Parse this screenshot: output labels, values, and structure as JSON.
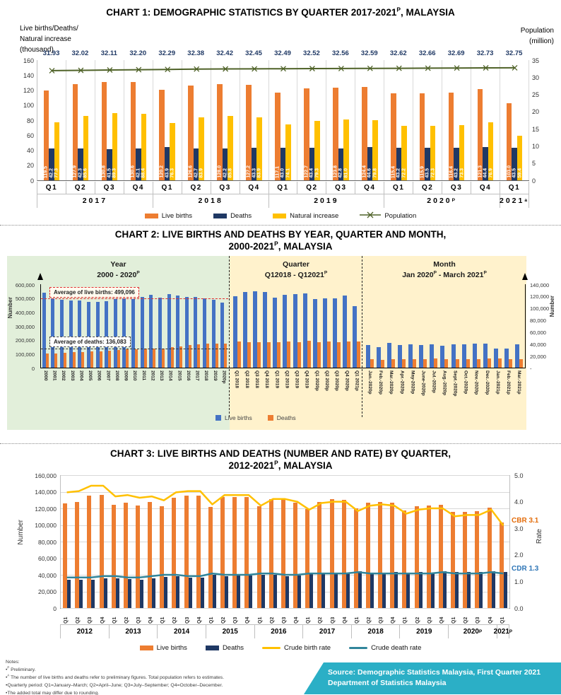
{
  "chart1": {
    "title": [
      {
        "t": "CHART 1: DEMOGRAPHIC STATISTICS BY QUARTER 2017-2021"
      },
      {
        "s": "P"
      },
      {
        "t": ",  MALAYSIA"
      }
    ],
    "left_caption": [
      "Live births/Deaths/",
      "Natural increase",
      "(thousand)"
    ],
    "right_caption": [
      "Population",
      "(million)"
    ]
  },
  "chart2": {
    "title_line1": [
      {
        "t": "CHART 2: LIVE BIRTHS AND DEATHS BY YEAR, QUARTER AND MONTH,"
      }
    ],
    "title_line2": [
      {
        "t": "2000-2021"
      },
      {
        "s": "P"
      },
      {
        "t": ",  MALAYSIA"
      }
    ]
  },
  "chart3": {
    "title_line1": [
      {
        "t": "CHART 3: LIVE BIRTHS AND DEATHS (NUMBER AND RATE) BY QUARTER,"
      }
    ],
    "title_line2": [
      {
        "t": "2012-2021"
      },
      {
        "s": "P"
      },
      {
        "t": ",  MALAYSIA"
      }
    ]
  },
  "notes": {
    "heading": "Notes:",
    "lines": [
      [
        {
          "t": "•"
        },
        {
          "s": "P"
        },
        {
          "t": " Preliminary."
        }
      ],
      [
        {
          "t": "•"
        },
        {
          "s": "A"
        },
        {
          "t": " The number of live births and deaths refer to preliminary figures. Total population refers to estimates."
        }
      ],
      [
        {
          "t": "•Quarterly period: Q1=January–March;  Q2=April–June; Q3=July–September; Q4=October–December."
        }
      ],
      [
        {
          "t": "•The added total may differ due to rounding."
        }
      ]
    ]
  },
  "source": {
    "line1": "Source: Demographic  Statistics Malaysia,  First Quarter 2021",
    "line2": "Department  of Statistics Malaysia",
    "bg": "#2BAFC6"
  },
  "chart_data": [
    {
      "id": "chart1",
      "type": "bar+line",
      "quarters": [
        "Q1",
        "Q2",
        "Q3",
        "Q4",
        "Q1",
        "Q2",
        "Q3",
        "Q4",
        "Q1",
        "Q2",
        "Q3",
        "Q4",
        "Q1",
        "Q2",
        "Q3",
        "Q4",
        "Q1"
      ],
      "year_groups": [
        {
          "label": [
            {
              "t": "2017"
            }
          ],
          "span": 4
        },
        {
          "label": [
            {
              "t": "2018"
            }
          ],
          "span": 4
        },
        {
          "label": [
            {
              "t": "2019"
            }
          ],
          "span": 4
        },
        {
          "label": [
            {
              "t": "2020"
            },
            {
              "s": "P"
            }
          ],
          "span": 4
        },
        {
          "label": [
            {
              "t": "2021"
            },
            {
              "s": "a"
            }
          ],
          "span": 1
        }
      ],
      "series": [
        {
          "name": "Live births",
          "type": "bar",
          "color": "#ED7D31",
          "values": [
            119.5,
            127.9,
            130.8,
            130.6,
            120.2,
            126.6,
            128.0,
            127.2,
            117.1,
            122.7,
            123.8,
            124.4,
            115.4,
            115.9,
            116.4,
            121.3,
            103.0
          ],
          "labels": [
            "119.5",
            "127.9",
            "130.8",
            "130.6",
            "120.2",
            "126.6",
            "128.0",
            "127.2",
            "117.1",
            "122.7",
            "123.8",
            "124.4",
            "115.4",
            "115.9",
            "116.4",
            "121.3",
            "103.0"
          ]
        },
        {
          "name": "Deaths",
          "type": "bar",
          "color": "#1F3864",
          "values": [
            42.2,
            42.3,
            41.5,
            42.1,
            43.9,
            42.7,
            42.2,
            43.3,
            43.0,
            43.4,
            42.8,
            44.6,
            43.2,
            43.5,
            43.2,
            44.4,
            43.5
          ],
          "labels": [
            "42.2",
            "42.3",
            "41.5",
            "42.1",
            "43.9",
            "42.7",
            "42.2",
            "43.3",
            "43.0",
            "43.4",
            "42.8",
            "44.6",
            "43.2",
            "43.5",
            "43.2",
            "44.4",
            "43.5"
          ]
        },
        {
          "name": "Natural increase",
          "type": "bar",
          "color": "#FFC000",
          "values": [
            77.3,
            85.6,
            89.3,
            88.4,
            76.3,
            83.9,
            85.8,
            83.9,
            74.1,
            79.3,
            81.0,
            79.8,
            72.2,
            72.3,
            73.3,
            76.9,
            59.4
          ],
          "labels": [
            "77.3",
            "85.6",
            "89.3",
            "88.4",
            "76.3",
            "83.9",
            "85.8",
            "83.9",
            "74.1",
            "79.3",
            "81.0",
            "79.8",
            "72.2",
            "72.3",
            "73.3",
            "76.9",
            "59.4"
          ]
        },
        {
          "name": "Population",
          "type": "line",
          "color": "#4F6228",
          "axis": "right",
          "values": [
            31.93,
            32.02,
            32.11,
            32.2,
            32.29,
            32.38,
            32.42,
            32.45,
            32.49,
            32.52,
            32.56,
            32.59,
            32.62,
            32.66,
            32.69,
            32.73,
            32.75
          ],
          "labels": [
            "31.93",
            "32.02",
            "32.11",
            "32.20",
            "32.29",
            "32.38",
            "32.42",
            "32.45",
            "32.49",
            "32.52",
            "32.56",
            "32.59",
            "32.62",
            "32.66",
            "32.69",
            "32.73",
            "32.75"
          ]
        }
      ],
      "left_axis": {
        "min": 0,
        "max": 160,
        "ticks": [
          "160",
          "140",
          "120",
          "100",
          "80",
          "60",
          "40",
          "20",
          "0"
        ]
      },
      "right_axis": {
        "min": 0,
        "max": 35,
        "ticks": [
          "35",
          "30",
          "25",
          "20",
          "15",
          "10",
          "5",
          "0"
        ]
      },
      "legend": [
        {
          "label": "Live births",
          "swatch": "rect",
          "color": "#ED7D31"
        },
        {
          "label": "Deaths",
          "swatch": "rect",
          "color": "#1F3864"
        },
        {
          "label": "Natural increase",
          "swatch": "rect",
          "color": "#FFC000"
        },
        {
          "label": "Population",
          "swatch": "xline",
          "color": "#4F6228"
        }
      ]
    },
    {
      "id": "chart2",
      "type": "bar",
      "sections": [
        {
          "name": "Year",
          "range": [
            {
              "t": "2000 - 2020"
            },
            {
              "s": "P"
            }
          ],
          "axis": "left",
          "categories": [
            "2000",
            "2001",
            "2002",
            "2003",
            "2004",
            "2005",
            "2006",
            "2007",
            "2008",
            "2009",
            "2010",
            "2011",
            "2012",
            "2013",
            "2014",
            "2015",
            "2016",
            "2017",
            "2018",
            "2019",
            "2020p"
          ],
          "live_births": [
            540000,
            500000,
            490000,
            481000,
            482000,
            474000,
            472000,
            480000,
            492000,
            500000,
            491000,
            511000,
            524000,
            503000,
            528000,
            521000,
            508000,
            508000,
            501000,
            487000,
            470000
          ],
          "deaths": [
            100000,
            104000,
            108000,
            112000,
            113000,
            115000,
            118000,
            120000,
            125000,
            130000,
            130000,
            135000,
            135000,
            140000,
            150000,
            155000,
            162000,
            168000,
            172000,
            173000,
            172000
          ]
        },
        {
          "name": "Quarter",
          "range": [
            {
              "t": "Q12018 - Q12021"
            },
            {
              "s": "P"
            }
          ],
          "axis": "right",
          "categories": [
            "Q1 2018",
            "Q2 2018",
            "Q3 2018",
            "Q4 2018",
            "Q1 2019",
            "Q2 2019",
            "Q3 2019",
            "Q4 2019",
            "Q1 2020p",
            "Q2 2020p",
            "Q3 2020p",
            "Q4 2020p",
            "Q1 2021p"
          ],
          "live_births": [
            120200,
            126600,
            128000,
            127200,
            117100,
            122700,
            123800,
            124400,
            115400,
            115900,
            116400,
            121300,
            103000
          ],
          "deaths": [
            43900,
            42700,
            42200,
            43300,
            43000,
            43400,
            42800,
            44600,
            43200,
            43500,
            43200,
            44400,
            43500
          ]
        },
        {
          "name": "Month",
          "range": [
            {
              "t": "Jan 2020"
            },
            {
              "s": "P"
            },
            {
              "t": " - March 2021"
            },
            {
              "s": "P"
            }
          ],
          "axis": "right",
          "categories": [
            "Jan.-2020p",
            "Feb.-2020p",
            "Mar.-2020p",
            "Apr.-2020p",
            "May-2020p",
            "June-2020p",
            "Jul.-2020p",
            "Aug.-2020p",
            "Sept.-2020p",
            "Oct.-2020p",
            "Nov.-2020p",
            "Dec.-2020p",
            "Jan.-2021p",
            "Feb.-2021p",
            "Mar.-2021p"
          ],
          "live_births": [
            38500,
            35000,
            41900,
            38000,
            39000,
            38400,
            39200,
            36500,
            39000,
            38800,
            40200,
            40300,
            32000,
            31500,
            39200
          ],
          "deaths": [
            14200,
            13200,
            14400,
            14000,
            14200,
            14800,
            15000,
            14000,
            14000,
            14000,
            14800,
            15200,
            15000,
            14000,
            14800
          ]
        }
      ],
      "series_colors": {
        "live_births": "#4472C4",
        "deaths": "#ED7D31"
      },
      "left_axis": {
        "label": "Number",
        "min": 0,
        "max": 600000,
        "ticks": [
          "600,000",
          "500,000",
          "400,000",
          "300,000",
          "200,000",
          "100,000",
          "0"
        ]
      },
      "right_axis": {
        "label": "Number",
        "min": 0,
        "max": 140000,
        "ticks": [
          "140,000",
          "120,000",
          "100,000",
          "80,000",
          "60,000",
          "40,000",
          "20,000",
          "-"
        ]
      },
      "annotations": [
        {
          "text": "Average of live births: 499,096",
          "value": 499096,
          "style": "red"
        },
        {
          "text": "Average of deaths: 136,083",
          "value": 136083,
          "style": "black"
        }
      ],
      "legend": [
        {
          "label": "Live births",
          "color": "#4472C4"
        },
        {
          "label": "Deaths",
          "color": "#ED7D31"
        }
      ],
      "backgrounds": {
        "year_section": "#E2EFDA",
        "quarter_month_section": "#FFF2CC"
      }
    },
    {
      "id": "chart3",
      "type": "bar+line",
      "quarters": [
        "Q1",
        "Q2",
        "Q3",
        "Q4",
        "Q1",
        "Q2",
        "Q3",
        "Q4",
        "Q1",
        "Q2",
        "Q3",
        "Q4",
        "Q1",
        "Q2",
        "Q3",
        "Q4",
        "Q1",
        "Q2",
        "Q3",
        "Q4",
        "Q1",
        "Q2",
        "Q3",
        "Q4",
        "Q1",
        "Q2",
        "Q3",
        "Q4",
        "Q1",
        "Q2",
        "Q3",
        "Q4",
        "Q1",
        "Q2",
        "Q3",
        "Q4",
        "Q1"
      ],
      "year_groups": [
        {
          "label": [
            {
              "t": "2012"
            }
          ],
          "span": 4
        },
        {
          "label": [
            {
              "t": "2013"
            }
          ],
          "span": 4
        },
        {
          "label": [
            {
              "t": "2014"
            }
          ],
          "span": 4
        },
        {
          "label": [
            {
              "t": "2015"
            }
          ],
          "span": 4
        },
        {
          "label": [
            {
              "t": "2016"
            }
          ],
          "span": 4
        },
        {
          "label": [
            {
              "t": "2017"
            }
          ],
          "span": 4
        },
        {
          "label": [
            {
              "t": "2018"
            }
          ],
          "span": 4
        },
        {
          "label": [
            {
              "t": "2019"
            }
          ],
          "span": 4
        },
        {
          "label": [
            {
              "t": "2020"
            },
            {
              "s": "P"
            }
          ],
          "span": 4
        },
        {
          "label": [
            {
              "t": "2021"
            },
            {
              "s": "P"
            }
          ],
          "span": 1
        }
      ],
      "series": [
        {
          "name": "Live births",
          "type": "bar",
          "color": "#ED7D31",
          "axis": "left",
          "values": [
            126000,
            128000,
            135500,
            136500,
            124500,
            127000,
            123500,
            127500,
            123000,
            133000,
            135000,
            135500,
            121500,
            133500,
            133500,
            133500,
            122500,
            131000,
            130500,
            127000,
            119500,
            127900,
            130800,
            130600,
            120200,
            126600,
            128000,
            127200,
            117100,
            122700,
            123800,
            124400,
            115400,
            115900,
            116400,
            121300,
            103000
          ]
        },
        {
          "name": "Deaths",
          "type": "bar",
          "color": "#1F3864",
          "axis": "left",
          "values": [
            34000,
            34200,
            34000,
            36000,
            36000,
            35200,
            34000,
            36000,
            37800,
            38000,
            37000,
            37000,
            40000,
            38500,
            39000,
            39000,
            40000,
            40000,
            38500,
            39000,
            42200,
            42300,
            41500,
            42100,
            43900,
            42700,
            42200,
            43300,
            43000,
            43400,
            42800,
            44600,
            43200,
            43500,
            43200,
            44400,
            43500
          ]
        },
        {
          "name": "Crude birth rate",
          "type": "line",
          "color": "#FFC000",
          "axis": "right",
          "values": [
            4.35,
            4.4,
            4.6,
            4.6,
            4.2,
            4.25,
            4.15,
            4.2,
            4.05,
            4.35,
            4.4,
            4.4,
            3.9,
            4.25,
            4.25,
            4.25,
            3.85,
            4.1,
            4.1,
            4.0,
            3.7,
            3.95,
            4.0,
            4.0,
            3.65,
            3.85,
            3.9,
            3.85,
            3.55,
            3.7,
            3.75,
            3.75,
            3.45,
            3.5,
            3.5,
            3.7,
            3.1
          ]
        },
        {
          "name": "Crude death rate",
          "type": "line",
          "color": "#31859B",
          "axis": "right",
          "values": [
            1.15,
            1.15,
            1.15,
            1.2,
            1.2,
            1.15,
            1.15,
            1.2,
            1.25,
            1.25,
            1.2,
            1.2,
            1.3,
            1.25,
            1.25,
            1.25,
            1.3,
            1.3,
            1.25,
            1.25,
            1.3,
            1.3,
            1.3,
            1.3,
            1.35,
            1.3,
            1.3,
            1.3,
            1.3,
            1.3,
            1.3,
            1.35,
            1.3,
            1.3,
            1.3,
            1.35,
            1.3
          ]
        }
      ],
      "left_axis": {
        "label": "Number",
        "min": 0,
        "max": 160000,
        "ticks": [
          "160,000",
          "140,000",
          "120,000",
          "100,000",
          "80,000",
          "60,000",
          "40,000",
          "20,000",
          "0"
        ]
      },
      "right_axis": {
        "label": "Rate",
        "min": 0,
        "max": 5,
        "ticks": [
          "5.0",
          "4.0",
          "3.0",
          "2.0",
          "1.0",
          "0.0"
        ]
      },
      "annotations": [
        {
          "text": "CBR 3.1",
          "color": "#E36C0A"
        },
        {
          "text": "CDR 1.3",
          "color": "#2E75B6"
        }
      ],
      "legend": [
        {
          "label": "Live births",
          "swatch": "rect",
          "color": "#ED7D31"
        },
        {
          "label": "Deaths",
          "swatch": "rect",
          "color": "#1F3864"
        },
        {
          "label": "Crude birth rate",
          "swatch": "line",
          "color": "#FFC000"
        },
        {
          "label": "Crude death rate",
          "swatch": "line",
          "color": "#31859B"
        }
      ]
    }
  ]
}
